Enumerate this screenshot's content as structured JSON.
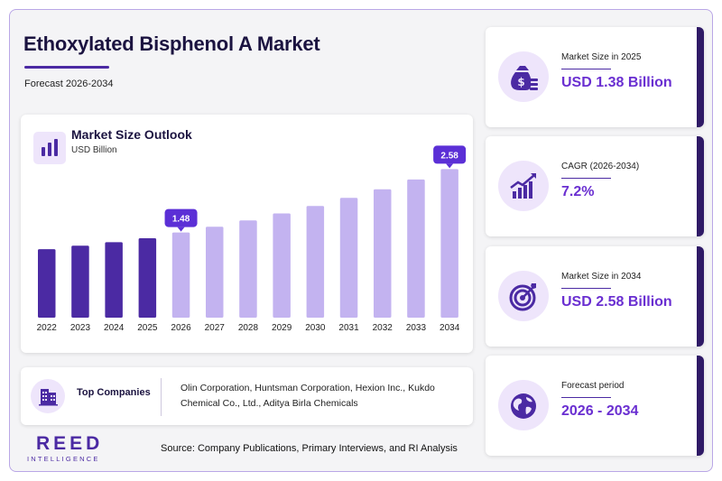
{
  "header": {
    "title": "Ethoxylated Bisphenol A Market",
    "subtitle": "Forecast 2026-2034"
  },
  "chart_data": {
    "type": "bar",
    "title": "Market Size Outlook",
    "ylabel": "USD Billion",
    "categories": [
      "2022",
      "2023",
      "2024",
      "2025",
      "2026",
      "2027",
      "2028",
      "2029",
      "2030",
      "2031",
      "2032",
      "2033",
      "2034"
    ],
    "values": [
      1.19,
      1.25,
      1.31,
      1.38,
      1.48,
      1.58,
      1.69,
      1.81,
      1.94,
      2.08,
      2.23,
      2.4,
      2.58
    ],
    "annotations": [
      {
        "category": "2026",
        "label": "1.48"
      },
      {
        "category": "2034",
        "label": "2.58"
      }
    ],
    "colors": {
      "historical": "#4b2aa3",
      "forecast": "#c3b3f0",
      "callout": "#5b2fd6"
    },
    "ylim": [
      0,
      2.9
    ],
    "grid": false,
    "legend": "none"
  },
  "companies": {
    "label": "Top Companies",
    "list": "Olin Corporation, Huntsman Corporation, Hexion Inc., Kukdo Chemical Co., Ltd., Aditya Birla Chemicals"
  },
  "brand": {
    "name": "REED",
    "tagline": "INTELLIGENCE"
  },
  "source": "Source: Company Publications, Primary Interviews, and RI Analysis",
  "stats": [
    {
      "label": "Market Size in 2025",
      "value": "USD 1.38 Billion",
      "icon": "money-bag-icon"
    },
    {
      "label": "CAGR (2026-2034)",
      "value": "7.2%",
      "icon": "growth-chart-icon"
    },
    {
      "label": "Market Size in 2034",
      "value": "USD 2.58 Billion",
      "icon": "target-icon"
    },
    {
      "label": "Forecast period",
      "value": "2026 - 2034",
      "icon": "globe-icon"
    }
  ]
}
